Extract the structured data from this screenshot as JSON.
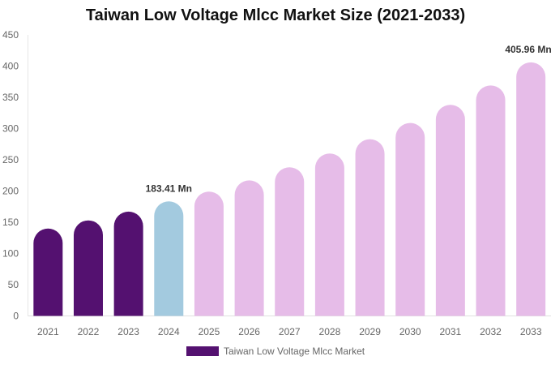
{
  "chart_data": {
    "type": "bar",
    "title": "Taiwan Low Voltage Mlcc Market Size (2021-2033)",
    "categories": [
      "2021",
      "2022",
      "2023",
      "2024",
      "2025",
      "2026",
      "2027",
      "2028",
      "2029",
      "2030",
      "2031",
      "2032",
      "2033"
    ],
    "series": [
      {
        "name": "Taiwan Low Voltage Mlcc Market",
        "values": [
          140,
          153,
          167,
          183.41,
          199,
          217,
          238,
          260,
          283,
          309,
          338,
          369,
          405.96
        ]
      }
    ],
    "data_labels": {
      "3": "183.41 Mn",
      "12": "405.96 Mn"
    },
    "ylim": [
      0,
      450
    ],
    "yticks": [
      0,
      50,
      100,
      150,
      200,
      250,
      300,
      350,
      400,
      450
    ],
    "xlabel": "",
    "ylabel": "",
    "grid": false,
    "legend_position": "bottom",
    "colors": {
      "historical": "#541170",
      "base_year": "#a3cadf",
      "forecast": "#e6bce8"
    }
  }
}
